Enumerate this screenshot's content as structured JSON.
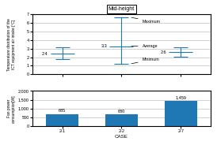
{
  "chart_data": [
    {
      "type": "errorbar",
      "title": "Mid-height",
      "categories": [
        "2-1",
        "2-2",
        "2-7"
      ],
      "values": [
        2.4,
        3.3,
        2.6
      ],
      "min": [
        1.8,
        1.2,
        2.1
      ],
      "max": [
        3.2,
        6.7,
        3.2
      ],
      "data_labels": true,
      "ylabel": "Temperature distribution of the\nICT equipment air intake [°C]",
      "ylim": [
        0,
        7
      ],
      "yticks": [
        0,
        1,
        2,
        3,
        4,
        5,
        6,
        7
      ],
      "grid": true,
      "tick_labels": "y",
      "annotations": [
        {
          "text": "Maximum",
          "category": "2-2",
          "value": 6.7
        },
        {
          "text": "Average",
          "category": "2-2",
          "value": 3.3
        },
        {
          "text": "Minimum",
          "category": "2-2",
          "value": 1.2
        }
      ]
    },
    {
      "type": "bar",
      "categories": [
        "2-1",
        "2-2",
        "2-7"
      ],
      "values": [
        685,
        680,
        1459
      ],
      "value_labels": [
        "685",
        "680",
        "1,459"
      ],
      "data_labels": true,
      "xlabel": "CASE",
      "ylabel": "Fan power\nconsumption[W]",
      "ylim": [
        0,
        2000
      ],
      "yticks": [
        0,
        500,
        {
          "value": 1000,
          "label": "1,000"
        },
        {
          "value": 1500,
          "label": "1,500"
        },
        {
          "value": 2000,
          "label": "2,000"
        }
      ],
      "grid": true
    }
  ]
}
